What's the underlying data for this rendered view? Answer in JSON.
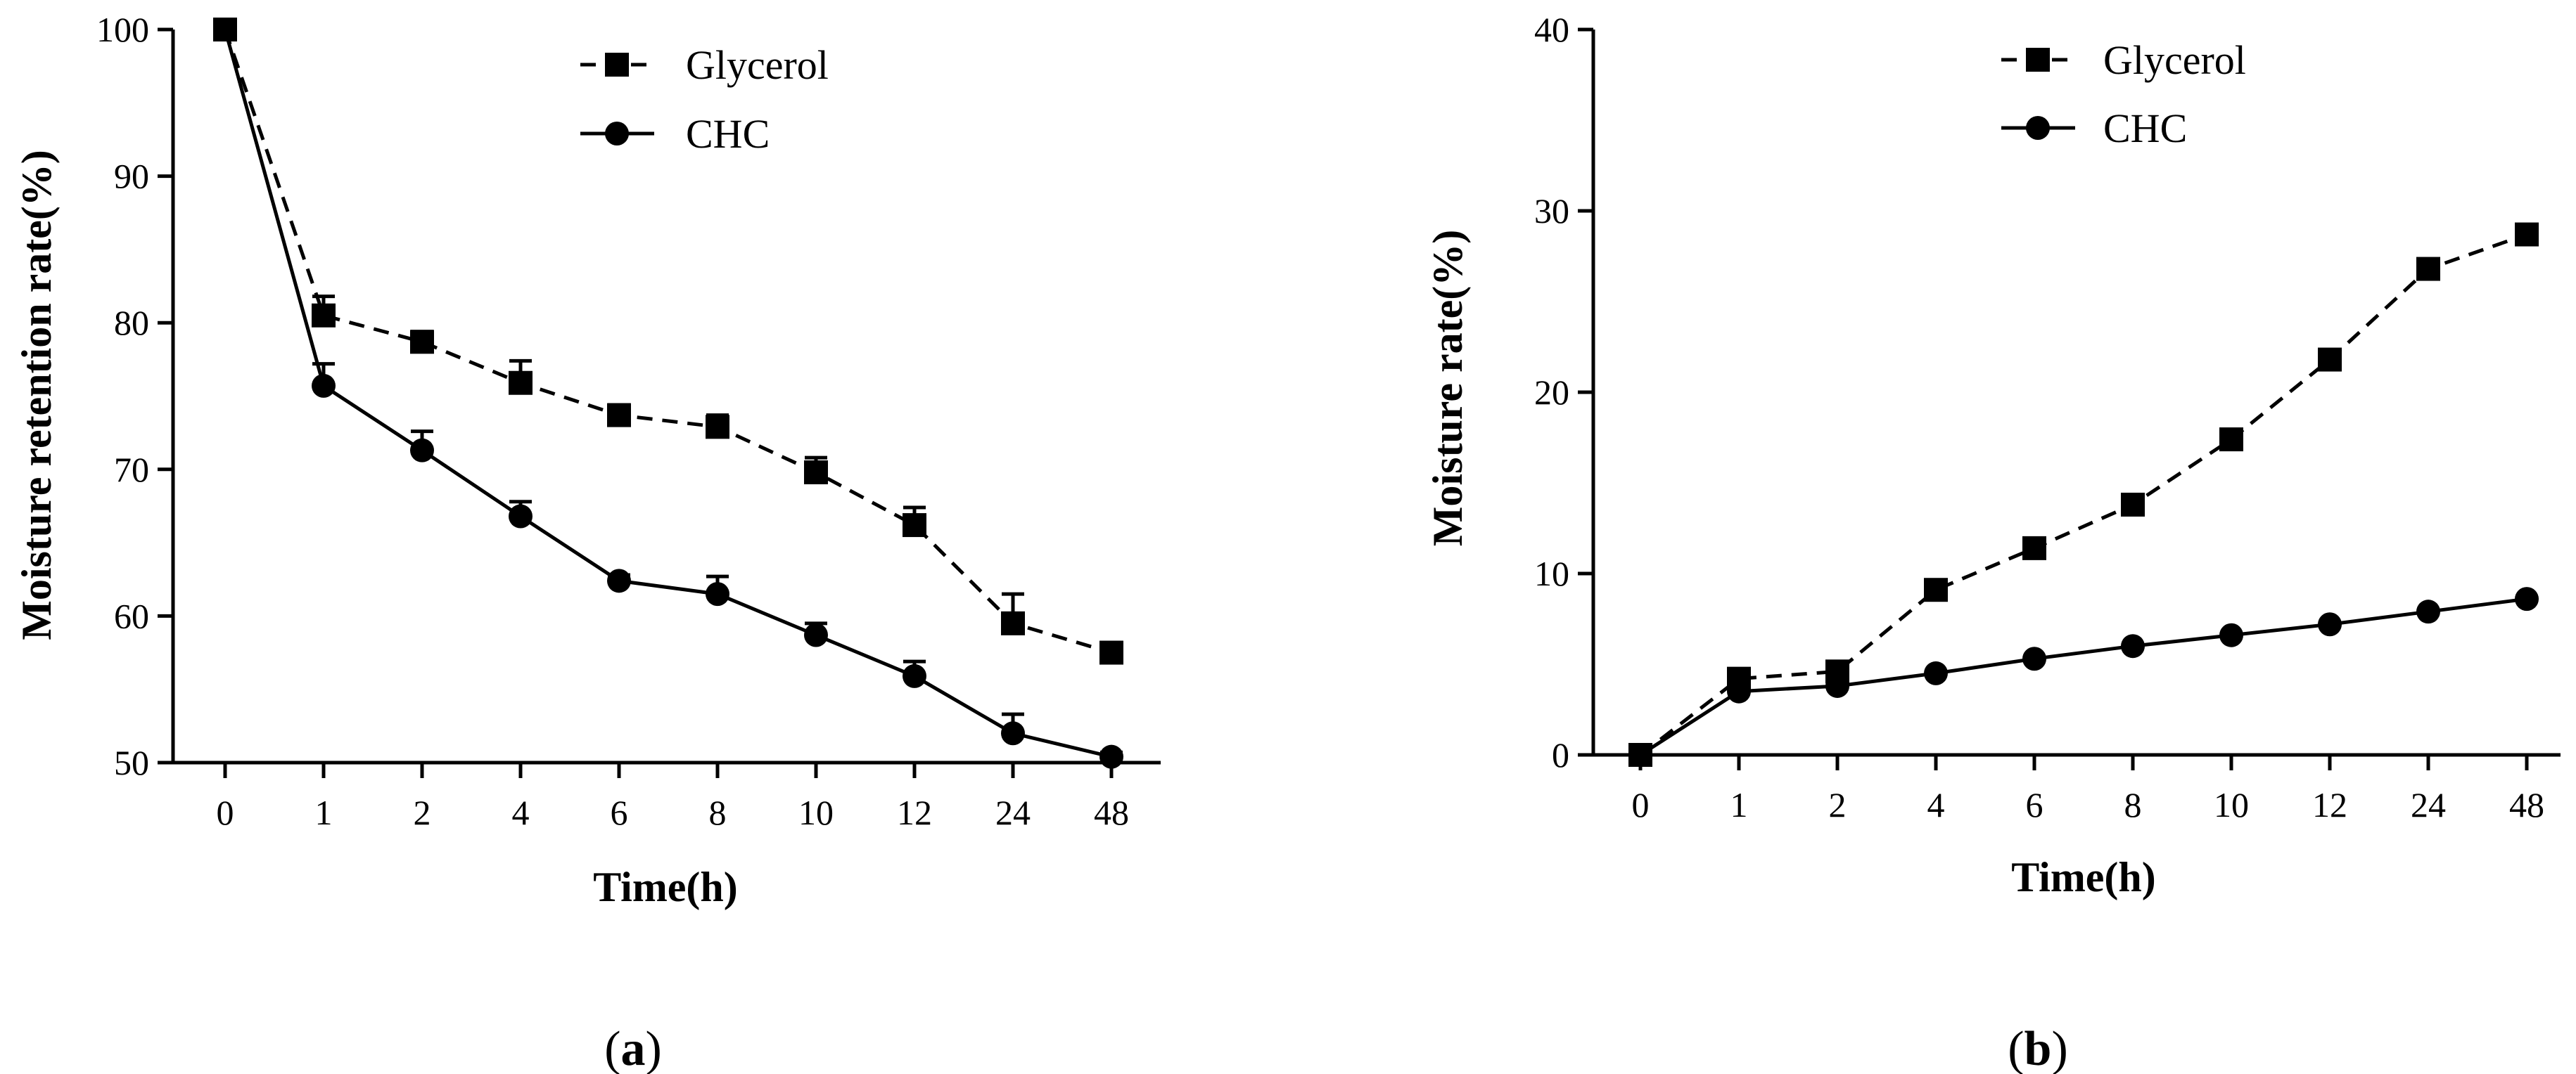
{
  "chart_data": [
    {
      "id": "a",
      "type": "line",
      "caption_letter": "a",
      "xlabel": "Time(h)",
      "ylabel": "Moisture retention rate(%)",
      "categories": [
        "0",
        "1",
        "2",
        "4",
        "6",
        "8",
        "10",
        "12",
        "24",
        "48"
      ],
      "ylim": [
        50,
        100
      ],
      "yticks": [
        50,
        60,
        70,
        80,
        90,
        100
      ],
      "legend_position": "top-center",
      "series": [
        {
          "name": "Glycerol",
          "marker": "square",
          "line": "dashed",
          "values": [
            100,
            80.5,
            78.7,
            75.9,
            73.7,
            72.9,
            69.8,
            66.2,
            59.5,
            57.5
          ],
          "errors": [
            0,
            1.3,
            0.7,
            1.5,
            0.7,
            0.8,
            1.0,
            1.2,
            2.0,
            0.7
          ]
        },
        {
          "name": "CHC",
          "marker": "circle",
          "line": "solid",
          "values": [
            100,
            75.7,
            71.3,
            66.8,
            62.4,
            61.5,
            58.7,
            55.9,
            52.0,
            50.4
          ],
          "errors": [
            0,
            1.5,
            1.3,
            1.0,
            0.4,
            1.2,
            0.8,
            1.0,
            1.3,
            0.3
          ]
        }
      ]
    },
    {
      "id": "b",
      "type": "line",
      "caption_letter": "b",
      "xlabel": "Time(h)",
      "ylabel": "Moisture rate(%)",
      "categories": [
        "0",
        "1",
        "2",
        "4",
        "6",
        "8",
        "10",
        "12",
        "24",
        "48"
      ],
      "ylim": [
        0,
        40
      ],
      "yticks": [
        0,
        10,
        20,
        30,
        40
      ],
      "legend_position": "top-center",
      "series": [
        {
          "name": "Glycerol",
          "marker": "square",
          "line": "dashed",
          "values": [
            0,
            4.2,
            4.6,
            9.1,
            11.4,
            13.8,
            17.4,
            21.8,
            26.8,
            28.7
          ],
          "errors": [
            0,
            0,
            0,
            0,
            0,
            0,
            0,
            0,
            0,
            0
          ]
        },
        {
          "name": "CHC",
          "marker": "circle",
          "line": "solid",
          "values": [
            0,
            3.5,
            3.8,
            4.5,
            5.3,
            6.0,
            6.6,
            7.2,
            7.9,
            8.6
          ],
          "errors": [
            0,
            0,
            0,
            0,
            0,
            0,
            0,
            0,
            0,
            0
          ]
        }
      ]
    }
  ]
}
